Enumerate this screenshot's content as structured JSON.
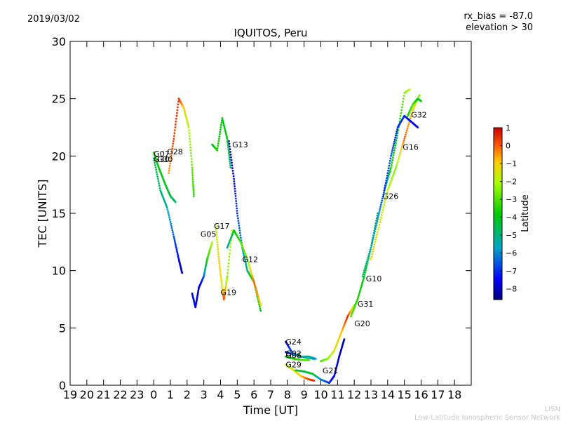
{
  "chart_data": {
    "type": "scatter",
    "title": "IQUITOS, Peru",
    "date": "2019/03/02",
    "info_lines": [
      "rx_bias = -87.0",
      "elevation > 30"
    ],
    "xlabel": "Time [UT]",
    "ylabel": "TEC [UNITS]",
    "x_ticks": [
      "19",
      "20",
      "21",
      "22",
      "23",
      "0",
      "1",
      "2",
      "3",
      "4",
      "5",
      "6",
      "7",
      "8",
      "9",
      "10",
      "11",
      "12",
      "13",
      "14",
      "15",
      "16",
      "17",
      "18"
    ],
    "ylim": [
      0,
      30
    ],
    "y_ticks": [
      0,
      5,
      10,
      15,
      20,
      25,
      30
    ],
    "colorbar": {
      "label": "Latitude",
      "range": [
        -8.6,
        1.0
      ],
      "ticks": [
        1,
        0,
        -1,
        -2,
        -3,
        -4,
        -5,
        -6,
        -7,
        -8
      ],
      "tick_labels": [
        "1",
        "0",
        "−1",
        "−2",
        "−3",
        "−4",
        "−5",
        "−6",
        "−7",
        "−8"
      ]
    },
    "series": [
      {
        "name": "G07",
        "points": [
          [
            0,
            20.3,
            -3.5
          ],
          [
            0.3,
            19,
            -3.8
          ],
          [
            0.7,
            17.5,
            -4
          ],
          [
            1.0,
            16.5,
            -4.5
          ],
          [
            1.3,
            16,
            -4.8
          ]
        ]
      },
      {
        "name": "G30",
        "points": [
          [
            0,
            19.8,
            -4.5
          ],
          [
            0.4,
            17,
            -4.8
          ],
          [
            0.8,
            15.5,
            -5.5
          ],
          [
            1.2,
            13,
            -6.5
          ],
          [
            1.5,
            11,
            -7.5
          ],
          [
            1.7,
            9.8,
            -8.2
          ]
        ]
      },
      {
        "name": "G28",
        "points": [
          [
            0.9,
            18.5,
            -0.5
          ],
          [
            1.2,
            21.5,
            0.2
          ],
          [
            1.5,
            25,
            0.5
          ],
          [
            1.8,
            24.2,
            -1
          ],
          [
            2.1,
            22.5,
            -2
          ],
          [
            2.3,
            19,
            -2.8
          ],
          [
            2.4,
            16.5,
            -3.5
          ]
        ]
      },
      {
        "name": "G05",
        "points": [
          [
            2.3,
            8,
            -7.2
          ],
          [
            2.5,
            6.8,
            -7.5
          ],
          [
            2.7,
            8.5,
            -8
          ],
          [
            3.0,
            9.5,
            -6.5
          ],
          [
            3.2,
            11,
            -3.5
          ],
          [
            3.5,
            12.5,
            -2
          ]
        ]
      },
      {
        "name": "G17",
        "points": [
          [
            3.5,
            21,
            -4
          ],
          [
            3.8,
            20.5,
            -3.5
          ],
          [
            4.1,
            23.3,
            -4
          ],
          [
            4.4,
            21.5,
            -4
          ],
          [
            4.6,
            19,
            -5
          ]
        ]
      },
      {
        "name": "G13",
        "points": [
          [
            4.5,
            21.3,
            -8
          ],
          [
            4.8,
            18,
            -7.5
          ],
          [
            5.0,
            15,
            -6.8
          ],
          [
            5.3,
            12,
            -6
          ],
          [
            5.6,
            10,
            -5
          ],
          [
            6.0,
            9,
            -3
          ],
          [
            6.4,
            6.5,
            -4
          ]
        ]
      },
      {
        "name": "G19",
        "points": [
          [
            3.7,
            14,
            -2
          ],
          [
            3.9,
            11,
            -1
          ],
          [
            4.1,
            8.5,
            -1.5
          ],
          [
            4.2,
            7.5,
            0.2
          ],
          [
            4.4,
            9.5,
            -2.5
          ],
          [
            4.7,
            13.5,
            -2
          ]
        ]
      },
      {
        "name": "G12",
        "points": [
          [
            4.4,
            12,
            -5.5
          ],
          [
            4.8,
            13.5,
            -4
          ],
          [
            5.2,
            12.5,
            -3
          ],
          [
            5.6,
            11,
            -2.5
          ],
          [
            6.0,
            9,
            0
          ],
          [
            6.4,
            7,
            -1
          ]
        ]
      },
      {
        "name": "G24",
        "points": [
          [
            7.9,
            3.8,
            -7.5
          ],
          [
            8.3,
            2.8,
            -6.5
          ],
          [
            8.8,
            2.5,
            -6
          ],
          [
            9.3,
            2.5,
            -5
          ],
          [
            9.7,
            2.3,
            -5.5
          ]
        ]
      },
      {
        "name": "G02",
        "points": [
          [
            7.9,
            2.9,
            -8.2
          ],
          [
            8.3,
            2.7,
            -6
          ],
          [
            8.8,
            2.5,
            -5
          ],
          [
            9.2,
            2.4,
            -5.5
          ],
          [
            9.6,
            2.3,
            -6
          ]
        ]
      },
      {
        "name": "G06",
        "points": [
          [
            7.9,
            2.5,
            -4
          ],
          [
            8.4,
            2.3,
            -3.5
          ],
          [
            8.9,
            2.2,
            -3
          ],
          [
            9.3,
            2.2,
            -3
          ]
        ]
      },
      {
        "name": "G29",
        "points": [
          [
            7.9,
            1.8,
            -2
          ],
          [
            8.3,
            1.4,
            -1.5
          ],
          [
            8.8,
            0.8,
            -1
          ],
          [
            9.3,
            0.5,
            0.3
          ],
          [
            9.6,
            0.4,
            0.5
          ]
        ]
      },
      {
        "name": "G21",
        "points": [
          [
            8.5,
            1.3,
            -4
          ],
          [
            9.0,
            1.2,
            -4.5
          ],
          [
            9.5,
            1.0,
            -4
          ],
          [
            10.0,
            0.5,
            -6
          ],
          [
            10.5,
            0.2,
            -7
          ],
          [
            10.8,
            0.8,
            -7.5
          ],
          [
            11.1,
            2.5,
            -8
          ],
          [
            11.4,
            4,
            -8.2
          ]
        ]
      },
      {
        "name": "G20",
        "points": [
          [
            10.0,
            2.1,
            -3
          ],
          [
            10.4,
            2.3,
            -2.5
          ],
          [
            10.8,
            3,
            -1.5
          ],
          [
            11.2,
            4.5,
            -1
          ],
          [
            11.6,
            6,
            0.5
          ],
          [
            12.0,
            7,
            -2
          ]
        ]
      },
      {
        "name": "G31",
        "points": [
          [
            11.8,
            6,
            -3
          ],
          [
            12.2,
            7.5,
            -3.5
          ],
          [
            12.6,
            9.5,
            -4
          ],
          [
            13.0,
            12,
            -4.5
          ],
          [
            13.4,
            15,
            -5
          ]
        ]
      },
      {
        "name": "G10",
        "points": [
          [
            12.5,
            9.5,
            -4.5
          ],
          [
            13.0,
            12,
            -5.5
          ],
          [
            13.4,
            14.5,
            -6
          ],
          [
            13.8,
            17,
            -6.5
          ],
          [
            14.2,
            19,
            -3.5
          ],
          [
            14.6,
            22,
            -4
          ],
          [
            15.0,
            25.5,
            -2.5
          ],
          [
            15.3,
            25.8,
            -2
          ]
        ]
      },
      {
        "name": "G26",
        "points": [
          [
            13.0,
            11,
            -1
          ],
          [
            13.5,
            14,
            -1.5
          ],
          [
            14.0,
            17,
            -2
          ],
          [
            14.5,
            19,
            -2.5
          ],
          [
            15.0,
            21.5,
            0
          ],
          [
            15.5,
            24,
            -1
          ],
          [
            15.9,
            25.3,
            -2.5
          ]
        ]
      },
      {
        "name": "G16",
        "points": [
          [
            13.8,
            17,
            -7
          ],
          [
            14.2,
            20,
            -6.5
          ],
          [
            14.6,
            22.5,
            -7
          ],
          [
            15.0,
            23.5,
            -7
          ],
          [
            15.4,
            23,
            -7.5
          ],
          [
            15.8,
            22.5,
            -7.8
          ]
        ]
      },
      {
        "name": "G32",
        "points": [
          [
            15.2,
            23.5,
            -3.5
          ],
          [
            15.5,
            24.5,
            -3
          ],
          [
            15.8,
            25,
            -4
          ],
          [
            16.0,
            24.8,
            -4
          ]
        ]
      }
    ],
    "series_labels": [
      {
        "text": "G07",
        "x": 0.0,
        "y": 20.2
      },
      {
        "text": "G30",
        "x": 0.0,
        "y": 19.7
      },
      {
        "text": "G30",
        "x": 0.2,
        "y": 19.7
      },
      {
        "text": "G28",
        "x": 0.8,
        "y": 20.4
      },
      {
        "text": "G13",
        "x": 4.7,
        "y": 21.0
      },
      {
        "text": "G17",
        "x": 3.6,
        "y": 13.9
      },
      {
        "text": "G05",
        "x": 2.8,
        "y": 13.2
      },
      {
        "text": "G12",
        "x": 5.3,
        "y": 11.0
      },
      {
        "text": "G19",
        "x": 4.0,
        "y": 8.1
      },
      {
        "text": "G24",
        "x": 7.9,
        "y": 3.8
      },
      {
        "text": "G02",
        "x": 7.9,
        "y": 2.8
      },
      {
        "text": "G06",
        "x": 7.9,
        "y": 2.6
      },
      {
        "text": "G29",
        "x": 7.9,
        "y": 1.8
      },
      {
        "text": "G21",
        "x": 10.1,
        "y": 1.3
      },
      {
        "text": "G20",
        "x": 12.0,
        "y": 5.4
      },
      {
        "text": "G31",
        "x": 12.2,
        "y": 7.1
      },
      {
        "text": "G10",
        "x": 12.7,
        "y": 9.3
      },
      {
        "text": "G26",
        "x": 13.7,
        "y": 16.5
      },
      {
        "text": "G16",
        "x": 14.9,
        "y": 20.8
      },
      {
        "text": "G32",
        "x": 15.4,
        "y": 23.6
      }
    ]
  },
  "footer": {
    "short": "LISN",
    "long": "Low-Latitude Ionospheric Sensor Network"
  }
}
